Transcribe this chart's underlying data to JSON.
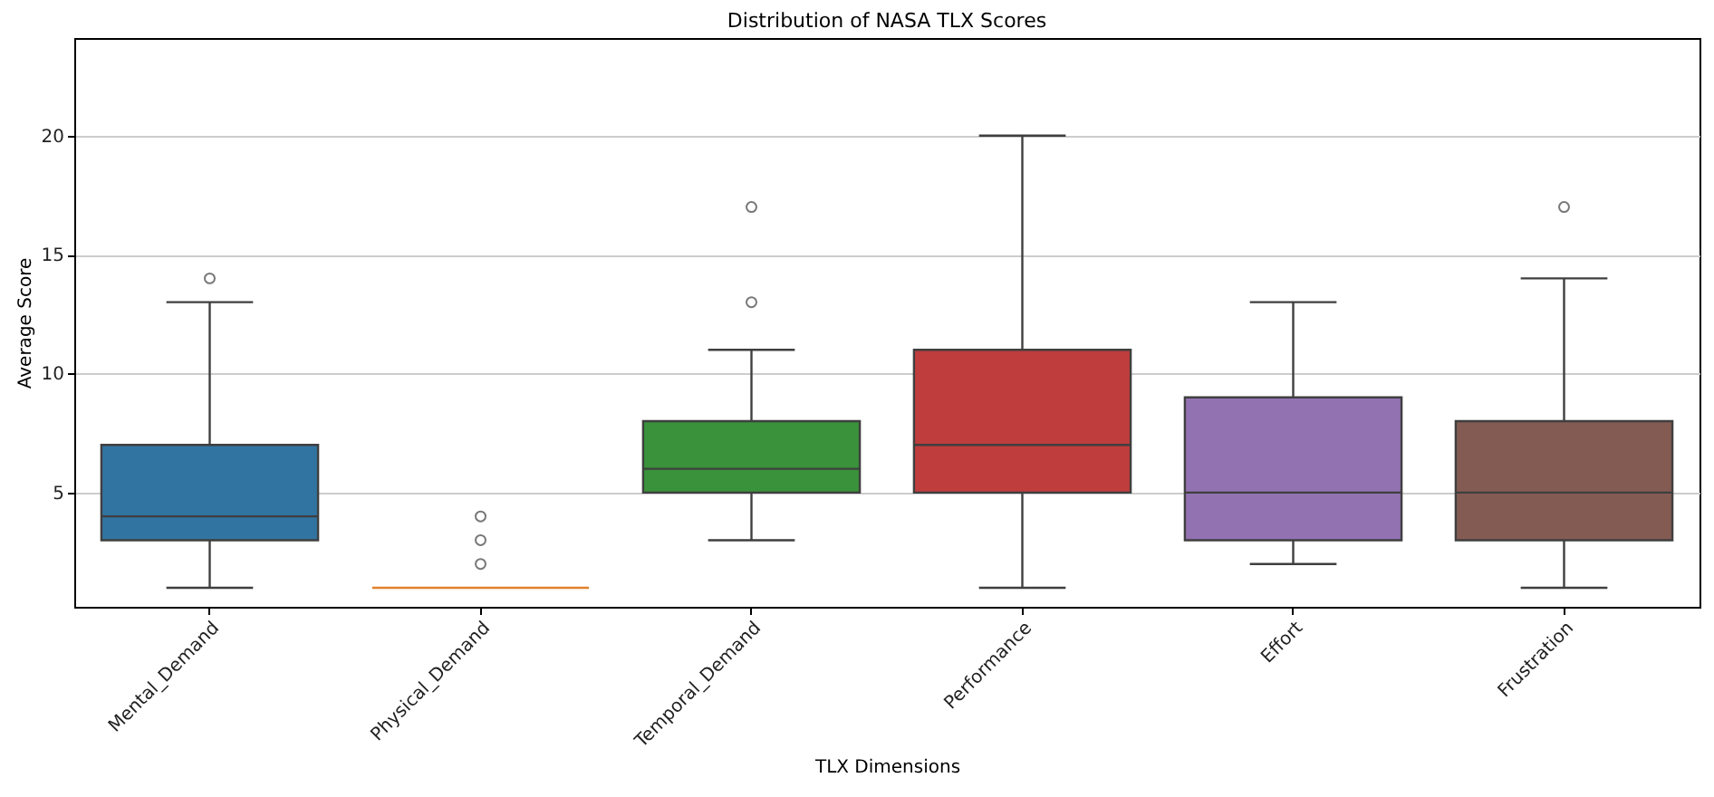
{
  "chart_data": {
    "type": "box",
    "title": "Distribution of NASA TLX Scores",
    "xlabel": "TLX Dimensions",
    "ylabel": "Average Score",
    "categories": [
      "Mental_Demand",
      "Physical_Demand",
      "Temporal_Demand",
      "Performance",
      "Effort",
      "Frustration"
    ],
    "colors": [
      "#3274a1",
      "#e1812c",
      "#3a923a",
      "#c03d3e",
      "#9372b2",
      "#845b53"
    ],
    "boxes": [
      {
        "low": 1,
        "q1": 3,
        "median": 4,
        "q3": 7,
        "high": 13,
        "outliers": [
          14
        ]
      },
      {
        "low": 1,
        "q1": 1,
        "median": 1,
        "q3": 1,
        "high": 1,
        "outliers": [
          2,
          3,
          4
        ]
      },
      {
        "low": 3,
        "q1": 5,
        "median": 6,
        "q3": 8,
        "high": 11,
        "outliers": [
          13,
          17
        ]
      },
      {
        "low": 1,
        "q1": 5,
        "median": 7,
        "q3": 11,
        "high": 20
      },
      {
        "low": 2,
        "q1": 3,
        "median": 5,
        "q3": 9,
        "high": 13
      },
      {
        "low": 1,
        "q1": 3,
        "median": 5,
        "q3": 8,
        "high": 14,
        "outliers": [
          17
        ]
      }
    ],
    "ylim": [
      0.2,
      24.1
    ],
    "yticks": [
      5,
      10,
      15,
      20
    ],
    "grid": "y"
  }
}
